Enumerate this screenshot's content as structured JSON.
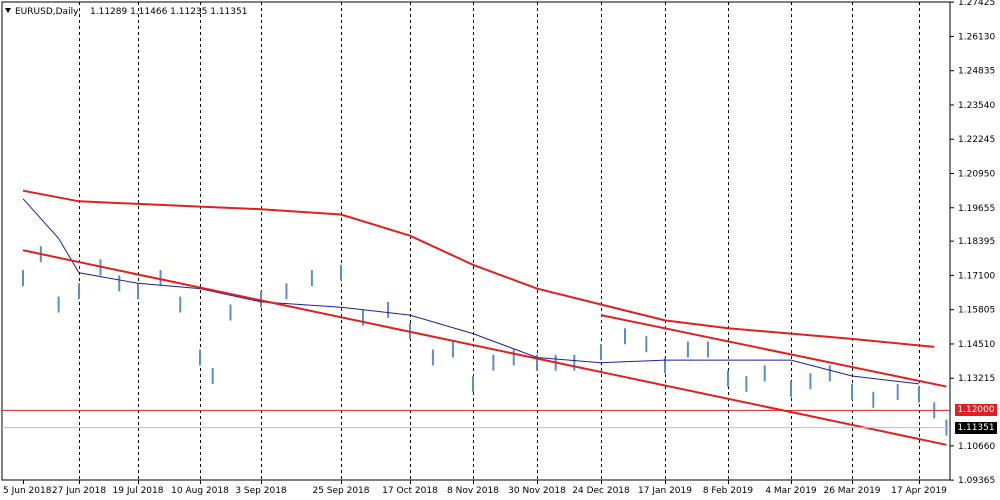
{
  "header": {
    "symbol_timeframe": "EURUSD,Daily",
    "ohlc": "1.11289 1.11466 1.11235 1.11351"
  },
  "chart_data": {
    "type": "bar",
    "symbol": "EURUSD",
    "timeframe": "Daily",
    "price_axis_ticks": [
      "1.27425",
      "1.26130",
      "1.24835",
      "1.23540",
      "1.22245",
      "1.20950",
      "1.19655",
      "1.18395",
      "1.17100",
      "1.15805",
      "1.14510",
      "1.13215",
      "1.10660",
      "1.09365"
    ],
    "ylim": [
      1.0937,
      1.2743
    ],
    "date_axis_ticks": [
      "5 Jun 2018",
      "27 Jun 2018",
      "19 Jul 2018",
      "10 Aug 2018",
      "3 Sep 2018",
      "25 Sep 2018",
      "17 Oct 2018",
      "8 Nov 2018",
      "30 Nov 2018",
      "24 Dec 2018",
      "17 Jan 2019",
      "8 Feb 2019",
      "4 Mar 2019",
      "26 Mar 2019",
      "17 Apr 2019"
    ],
    "grid": "vertical-dashed",
    "close_series": [
      {
        "date": "5 Jun 2018",
        "value": 1.17
      },
      {
        "date": "12 Jun 2018",
        "value": 1.179
      },
      {
        "date": "19 Jun 2018",
        "value": 1.16
      },
      {
        "date": "27 Jun 2018",
        "value": 1.165
      },
      {
        "date": "5 Jul 2018",
        "value": 1.174
      },
      {
        "date": "12 Jul 2018",
        "value": 1.168
      },
      {
        "date": "19 Jul 2018",
        "value": 1.165
      },
      {
        "date": "27 Jul 2018",
        "value": 1.17
      },
      {
        "date": "3 Aug 2018",
        "value": 1.16
      },
      {
        "date": "10 Aug 2018",
        "value": 1.14
      },
      {
        "date": "15 Aug 2018",
        "value": 1.133
      },
      {
        "date": "22 Aug 2018",
        "value": 1.157
      },
      {
        "date": "3 Sep 2018",
        "value": 1.162
      },
      {
        "date": "10 Sep 2018",
        "value": 1.165
      },
      {
        "date": "17 Sep 2018",
        "value": 1.17
      },
      {
        "date": "25 Sep 2018",
        "value": 1.172
      },
      {
        "date": "2 Oct 2018",
        "value": 1.155
      },
      {
        "date": "10 Oct 2018",
        "value": 1.158
      },
      {
        "date": "17 Oct 2018",
        "value": 1.15
      },
      {
        "date": "25 Oct 2018",
        "value": 1.14
      },
      {
        "date": "1 Nov 2018",
        "value": 1.143
      },
      {
        "date": "8 Nov 2018",
        "value": 1.13
      },
      {
        "date": "15 Nov 2018",
        "value": 1.138
      },
      {
        "date": "22 Nov 2018",
        "value": 1.14
      },
      {
        "date": "30 Nov 2018",
        "value": 1.138
      },
      {
        "date": "7 Dec 2018",
        "value": 1.138
      },
      {
        "date": "14 Dec 2018",
        "value": 1.138
      },
      {
        "date": "24 Dec 2018",
        "value": 1.142
      },
      {
        "date": "2 Jan 2019",
        "value": 1.148
      },
      {
        "date": "10 Jan 2019",
        "value": 1.145
      },
      {
        "date": "17 Jan 2019",
        "value": 1.137
      },
      {
        "date": "25 Jan 2019",
        "value": 1.143
      },
      {
        "date": "1 Feb 2019",
        "value": 1.143
      },
      {
        "date": "8 Feb 2019",
        "value": 1.132
      },
      {
        "date": "15 Feb 2019",
        "value": 1.13
      },
      {
        "date": "22 Feb 2019",
        "value": 1.134
      },
      {
        "date": "4 Mar 2019",
        "value": 1.128
      },
      {
        "date": "11 Mar 2019",
        "value": 1.131
      },
      {
        "date": "18 Mar 2019",
        "value": 1.134
      },
      {
        "date": "26 Mar 2019",
        "value": 1.127
      },
      {
        "date": "2 Apr 2019",
        "value": 1.124
      },
      {
        "date": "10 Apr 2019",
        "value": 1.127
      },
      {
        "date": "17 Apr 2019",
        "value": 1.126
      },
      {
        "date": "22 Apr 2019",
        "value": 1.12
      },
      {
        "date": "26 Apr 2019",
        "value": 1.1135
      }
    ],
    "moving_averages": [
      {
        "name": "",
        "color": "#e02020",
        "points": [
          {
            "date": "5 Jun 2018",
            "value": 1.203
          },
          {
            "date": "27 Jun 2018",
            "value": 1.199
          },
          {
            "date": "10 Aug 2018",
            "value": 1.197
          },
          {
            "date": "3 Sep 2018",
            "value": 1.196
          },
          {
            "date": "25 Sep 2018",
            "value": 1.194
          },
          {
            "date": "17 Oct 2018",
            "value": 1.186
          },
          {
            "date": "8 Nov 2018",
            "value": 1.175
          },
          {
            "date": "30 Nov 2018",
            "value": 1.166
          },
          {
            "date": "24 Dec 2018",
            "value": 1.16
          },
          {
            "date": "17 Jan 2019",
            "value": 1.154
          },
          {
            "date": "8 Feb 2019",
            "value": 1.151
          },
          {
            "date": "4 Mar 2019",
            "value": 1.149
          },
          {
            "date": "26 Mar 2019",
            "value": 1.147
          },
          {
            "date": "22 Apr 2019",
            "value": 1.144
          }
        ]
      },
      {
        "name": "",
        "color": "#1e1ea0",
        "points": [
          {
            "date": "5 Jun 2018",
            "value": 1.2
          },
          {
            "date": "19 Jun 2018",
            "value": 1.185
          },
          {
            "date": "27 Jun 2018",
            "value": 1.172
          },
          {
            "date": "19 Jul 2018",
            "value": 1.168
          },
          {
            "date": "10 Aug 2018",
            "value": 1.166
          },
          {
            "date": "3 Sep 2018",
            "value": 1.161
          },
          {
            "date": "25 Sep 2018",
            "value": 1.159
          },
          {
            "date": "17 Oct 2018",
            "value": 1.156
          },
          {
            "date": "8 Nov 2018",
            "value": 1.149
          },
          {
            "date": "30 Nov 2018",
            "value": 1.14
          },
          {
            "date": "24 Dec 2018",
            "value": 1.138
          },
          {
            "date": "17 Jan 2019",
            "value": 1.139
          },
          {
            "date": "8 Feb 2019",
            "value": 1.139
          },
          {
            "date": "4 Mar 2019",
            "value": 1.139
          },
          {
            "date": "26 Mar 2019",
            "value": 1.133
          },
          {
            "date": "17 Apr 2019",
            "value": 1.13
          }
        ]
      }
    ],
    "trendlines": [
      {
        "name": "",
        "color": "#e02020",
        "from": {
          "date": "5 Jun 2018",
          "value": 1.1805
        },
        "to": {
          "date": "26 Apr 2019",
          "value": 1.107
        }
      },
      {
        "name": "",
        "color": "#e02020",
        "from": {
          "date": "24 Dec 2018",
          "value": 1.156
        },
        "to": {
          "date": "26 Apr 2019",
          "value": 1.129
        }
      }
    ],
    "horizontal_lines": [
      {
        "value": "1.12000",
        "color": "#e02020"
      },
      {
        "value": "1.11351",
        "color": "#c0c0c0"
      }
    ],
    "current_price": "1.11351"
  }
}
